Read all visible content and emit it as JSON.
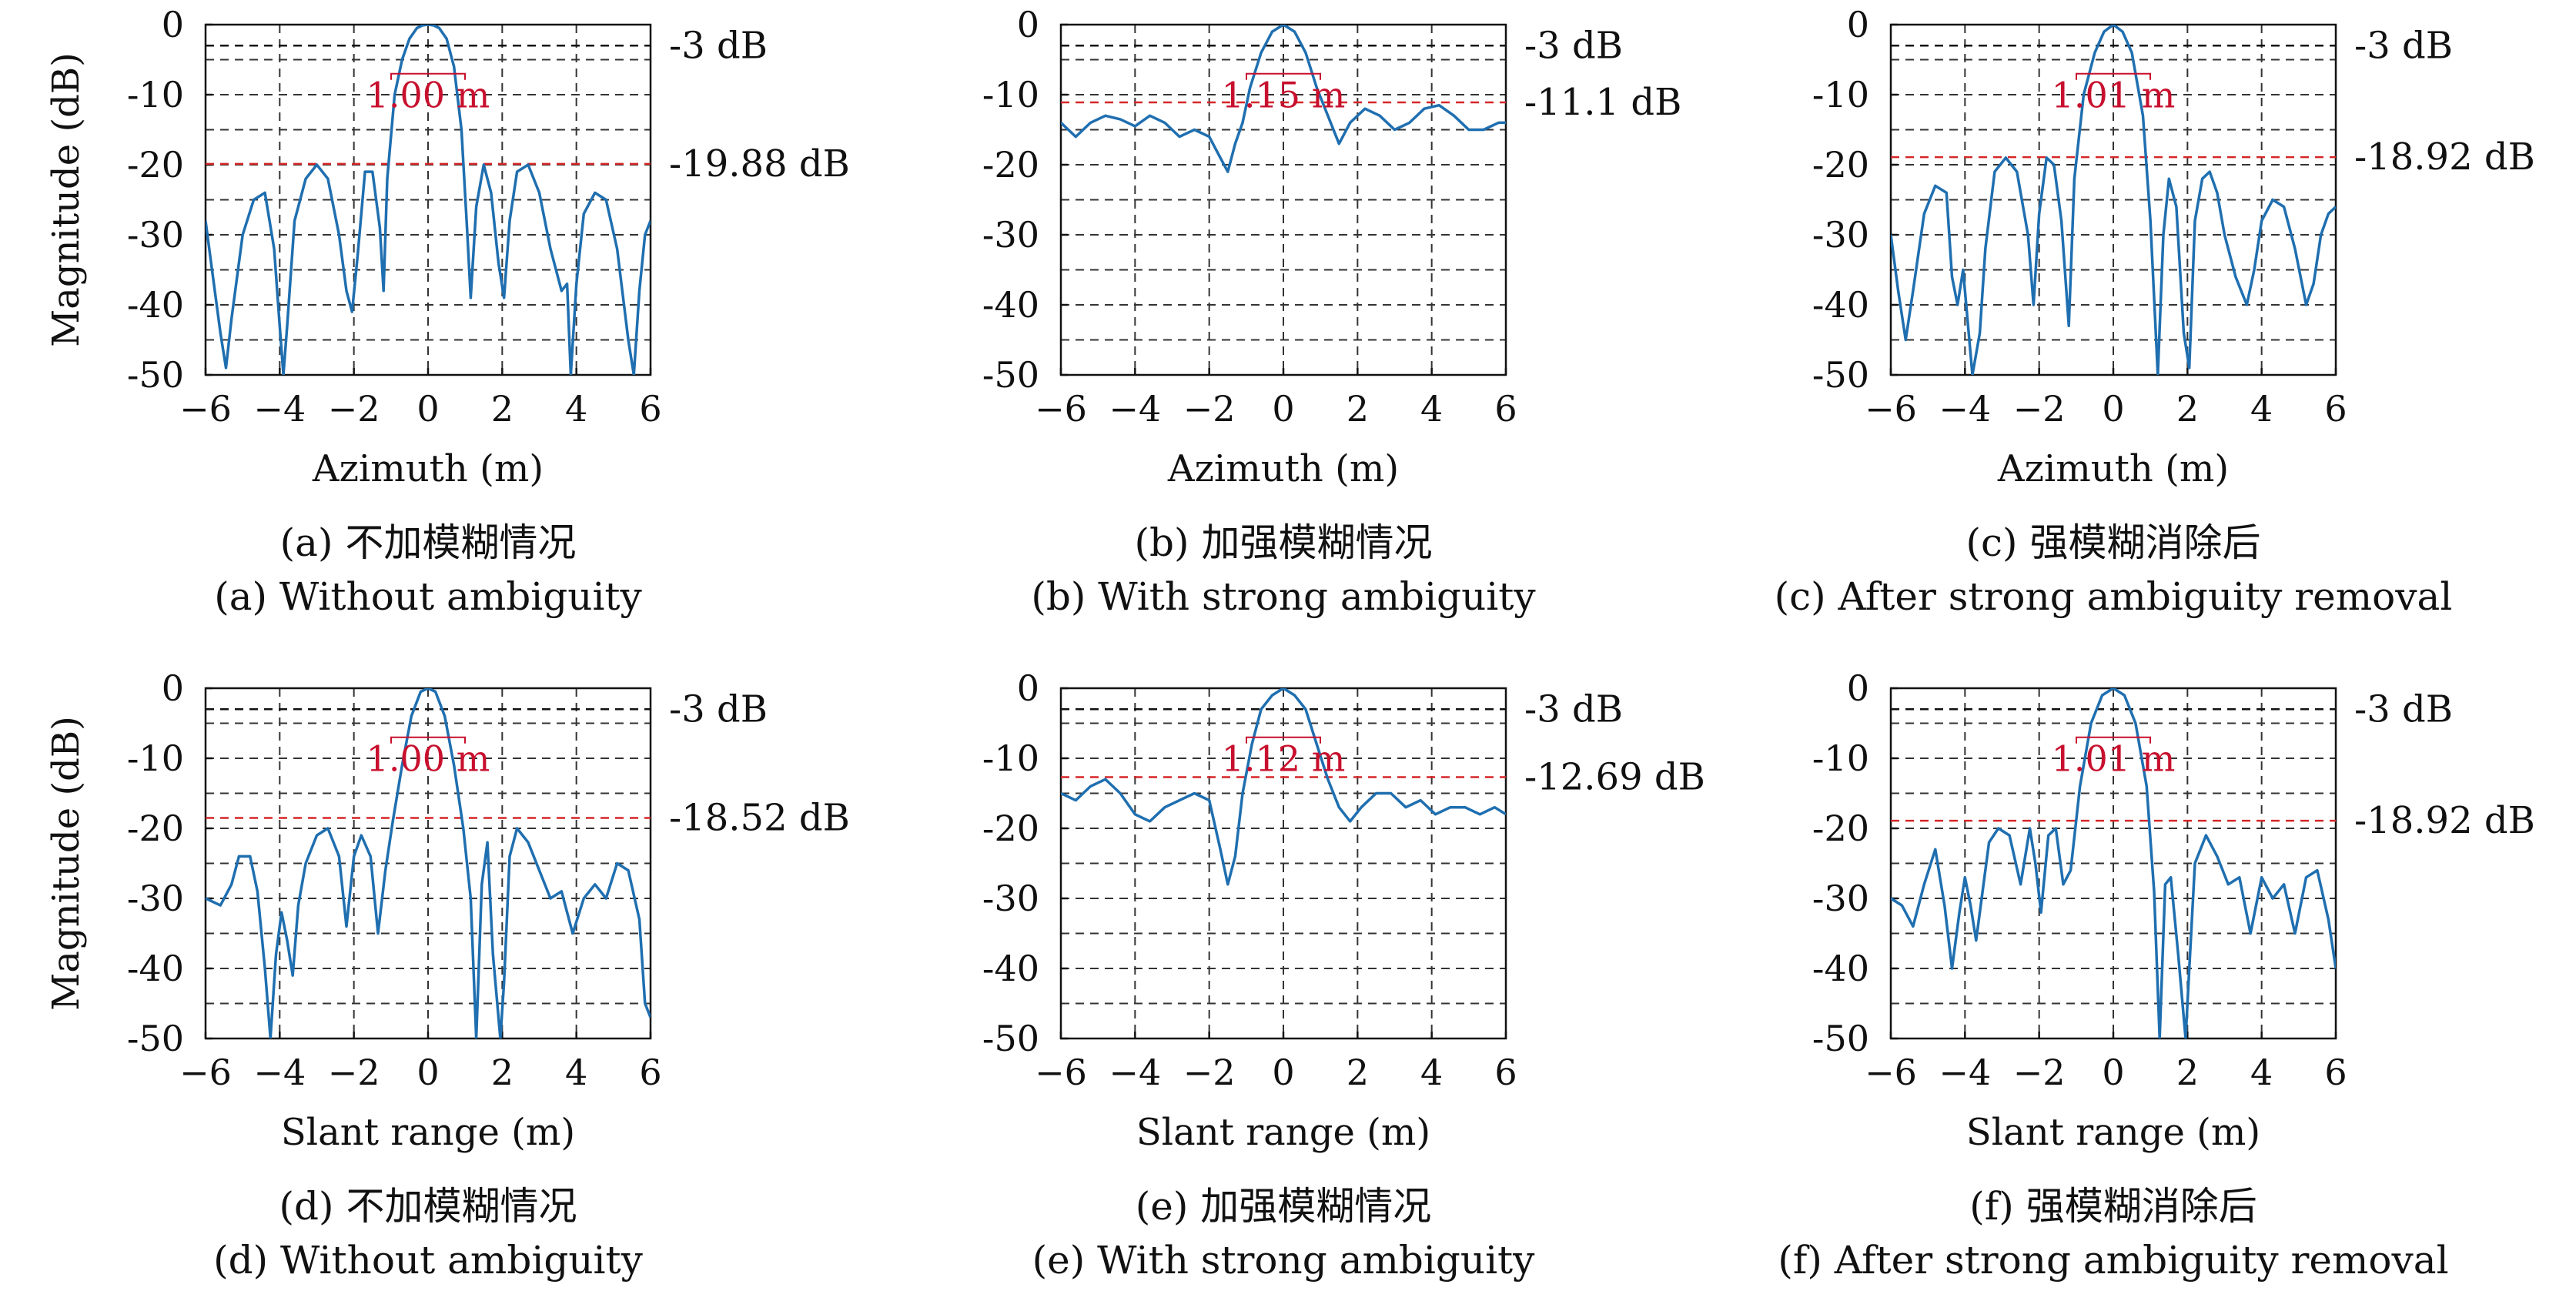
{
  "colors": {
    "line": "#1f6fb0",
    "ref_line": "#d62728",
    "grid": "#333333",
    "annotation": "#c8102e"
  },
  "chart_data": [
    {
      "type": "line",
      "xlabel": "Azimuth (m)",
      "ylabel": "Magnitude (dB)",
      "xlim": [
        -6,
        6
      ],
      "ylim": [
        -50,
        0
      ],
      "xticks": [
        "−6",
        "−4",
        "−2",
        "0",
        "2",
        "4",
        "6"
      ],
      "yticks": [
        "0",
        "-10",
        "-20",
        "-30",
        "-40",
        "-50"
      ],
      "grid": true,
      "ref_label_3db": "-3 dB",
      "ref_value": -19.88,
      "ref_label": "-19.88 dB",
      "width_label": "1.00 m",
      "caption_cn": "(a) 不加模糊情况",
      "caption_en": "(a) Without ambiguity",
      "series": [
        {
          "x": [
            -6,
            -5.8,
            -5.6,
            -5.45,
            -5.3,
            -5.0,
            -4.7,
            -4.4,
            -4.15,
            -4.0,
            -3.9,
            -3.8,
            -3.6,
            -3.3,
            -3.0,
            -2.7,
            -2.4,
            -2.2,
            -2.05,
            -1.9,
            -1.7,
            -1.5,
            -1.3,
            -1.2,
            -1.1,
            -0.9,
            -0.7,
            -0.5,
            -0.3,
            -0.15,
            0,
            0.15,
            0.3,
            0.5,
            0.7,
            0.9,
            1.05,
            1.15,
            1.3,
            1.5,
            1.7,
            1.9,
            2.05,
            2.2,
            2.4,
            2.7,
            3.0,
            3.3,
            3.6,
            3.75,
            3.85,
            4.0,
            4.2,
            4.5,
            4.8,
            5.1,
            5.4,
            5.55,
            5.7,
            5.85,
            6
          ],
          "y": [
            -28,
            -36,
            -44,
            -49,
            -42,
            -30,
            -25,
            -24,
            -32,
            -43,
            -50,
            -43,
            -28,
            -22,
            -20,
            -22,
            -30,
            -38,
            -41,
            -33,
            -21,
            -21,
            -29,
            -38,
            -22,
            -10,
            -5,
            -2,
            -0.5,
            -0.1,
            0,
            -0.1,
            -0.5,
            -2,
            -6,
            -15,
            -29,
            -39,
            -26,
            -20,
            -24,
            -34,
            -39,
            -28,
            -21,
            -20,
            -24,
            -32,
            -38,
            -37,
            -50,
            -37,
            -27,
            -24,
            -25,
            -32,
            -45,
            -50,
            -38,
            -30,
            -28
          ]
        }
      ]
    },
    {
      "type": "line",
      "xlabel": "Azimuth (m)",
      "ylabel": "",
      "xlim": [
        -6,
        6
      ],
      "ylim": [
        -50,
        0
      ],
      "xticks": [
        "−6",
        "−4",
        "−2",
        "0",
        "2",
        "4",
        "6"
      ],
      "yticks": [
        "0",
        "-10",
        "-20",
        "-30",
        "-40",
        "-50"
      ],
      "grid": true,
      "ref_label_3db": "-3 dB",
      "ref_value": -11.1,
      "ref_label": "-11.1 dB",
      "width_label": "1.15 m",
      "caption_cn": "(b) 加强模糊情况",
      "caption_en": "(b) With strong ambiguity",
      "series": [
        {
          "x": [
            -6,
            -5.6,
            -5.2,
            -4.8,
            -4.4,
            -4.0,
            -3.6,
            -3.2,
            -2.8,
            -2.4,
            -2.0,
            -1.7,
            -1.5,
            -1.3,
            -1.1,
            -0.9,
            -0.6,
            -0.3,
            0,
            0.3,
            0.6,
            0.9,
            1.2,
            1.5,
            1.8,
            2.2,
            2.6,
            3.0,
            3.4,
            3.8,
            4.2,
            4.6,
            5.0,
            5.4,
            5.8,
            6
          ],
          "y": [
            -14,
            -16,
            -14,
            -13,
            -13.5,
            -14.5,
            -13,
            -14,
            -16,
            -15,
            -16,
            -19,
            -21,
            -17,
            -14,
            -9,
            -4,
            -1,
            0,
            -1,
            -4,
            -9,
            -13,
            -17,
            -14,
            -12,
            -13,
            -15,
            -14,
            -12,
            -11.5,
            -13,
            -15,
            -15,
            -14,
            -14
          ]
        }
      ]
    },
    {
      "type": "line",
      "xlabel": "Azimuth (m)",
      "ylabel": "",
      "xlim": [
        -6,
        6
      ],
      "ylim": [
        -50,
        0
      ],
      "xticks": [
        "−6",
        "−4",
        "−2",
        "0",
        "2",
        "4",
        "6"
      ],
      "yticks": [
        "0",
        "-10",
        "-20",
        "-30",
        "-40",
        "-50"
      ],
      "grid": true,
      "ref_label_3db": "-3 dB",
      "ref_value": -18.92,
      "ref_label": "-18.92 dB",
      "width_label": "1.01 m",
      "caption_cn": "(c) 强模糊消除后",
      "caption_en": "(c) After strong ambiguity removal",
      "series": [
        {
          "x": [
            -6,
            -5.8,
            -5.6,
            -5.4,
            -5.1,
            -4.8,
            -4.5,
            -4.35,
            -4.2,
            -4.05,
            -3.8,
            -3.6,
            -3.45,
            -3.2,
            -2.9,
            -2.6,
            -2.3,
            -2.15,
            -2.0,
            -1.8,
            -1.6,
            -1.4,
            -1.2,
            -1.05,
            -0.8,
            -0.5,
            -0.25,
            0,
            0.25,
            0.5,
            0.8,
            1.0,
            1.2,
            1.35,
            1.5,
            1.7,
            1.9,
            2.05,
            2.2,
            2.4,
            2.6,
            2.8,
            3.0,
            3.3,
            3.6,
            3.8,
            4.0,
            4.3,
            4.6,
            4.9,
            5.2,
            5.4,
            5.6,
            5.8,
            6
          ],
          "y": [
            -30,
            -38,
            -45,
            -38,
            -27,
            -23,
            -24,
            -36,
            -40,
            -35,
            -50,
            -44,
            -32,
            -21,
            -19,
            -21,
            -30,
            -40,
            -27,
            -19,
            -20,
            -28,
            -43,
            -22,
            -10,
            -4,
            -1,
            0,
            -1,
            -4,
            -13,
            -28,
            -50,
            -30,
            -22,
            -26,
            -44,
            -49,
            -28,
            -22,
            -21,
            -24,
            -30,
            -36,
            -40,
            -35,
            -28,
            -25,
            -26,
            -32,
            -40,
            -37,
            -30,
            -27,
            -26
          ]
        }
      ]
    },
    {
      "type": "line",
      "xlabel": "Slant range (m)",
      "ylabel": "Magnitude (dB)",
      "xlim": [
        -6,
        6
      ],
      "ylim": [
        -50,
        0
      ],
      "xticks": [
        "−6",
        "−4",
        "−2",
        "0",
        "2",
        "4",
        "6"
      ],
      "yticks": [
        "0",
        "-10",
        "-20",
        "-30",
        "-40",
        "-50"
      ],
      "grid": true,
      "ref_label_3db": "-3 dB",
      "ref_value": -18.52,
      "ref_label": "-18.52 dB",
      "width_label": "1.00 m",
      "caption_cn": "(d) 不加模糊情况",
      "caption_en": "(d) Without ambiguity",
      "series": [
        {
          "x": [
            -6,
            -5.6,
            -5.3,
            -5.1,
            -4.8,
            -4.6,
            -4.4,
            -4.25,
            -4.1,
            -3.95,
            -3.8,
            -3.65,
            -3.5,
            -3.3,
            -3.0,
            -2.7,
            -2.4,
            -2.2,
            -2.0,
            -1.8,
            -1.55,
            -1.35,
            -1.15,
            -0.95,
            -0.7,
            -0.45,
            -0.2,
            0,
            0.2,
            0.45,
            0.7,
            0.95,
            1.15,
            1.3,
            1.45,
            1.6,
            1.75,
            1.95,
            2.05,
            2.2,
            2.4,
            2.7,
            3.0,
            3.3,
            3.6,
            3.9,
            4.2,
            4.5,
            4.8,
            5.1,
            5.4,
            5.7,
            5.85,
            6
          ],
          "y": [
            -30,
            -31,
            -28,
            -24,
            -24,
            -29,
            -40,
            -50,
            -38,
            -32,
            -36,
            -41,
            -31,
            -25,
            -21,
            -20,
            -24,
            -34,
            -24,
            -21,
            -24,
            -35,
            -26,
            -19,
            -11,
            -4,
            -0.5,
            0,
            -0.5,
            -4,
            -11,
            -20,
            -30,
            -50,
            -28,
            -22,
            -38,
            -50,
            -42,
            -24,
            -20,
            -22,
            -26,
            -30,
            -29,
            -35,
            -30,
            -28,
            -30,
            -25,
            -26,
            -33,
            -45,
            -47
          ]
        }
      ]
    },
    {
      "type": "line",
      "xlabel": "Slant range (m)",
      "ylabel": "",
      "xlim": [
        -6,
        6
      ],
      "ylim": [
        -50,
        0
      ],
      "xticks": [
        "−6",
        "−4",
        "−2",
        "0",
        "2",
        "4",
        "6"
      ],
      "yticks": [
        "0",
        "-10",
        "-20",
        "-30",
        "-40",
        "-50"
      ],
      "grid": true,
      "ref_label_3db": "-3 dB",
      "ref_value": -12.69,
      "ref_label": "-12.69 dB",
      "width_label": "1.12 m",
      "caption_cn": "(e) 加强模糊情况",
      "caption_en": "(e) With strong ambiguity",
      "series": [
        {
          "x": [
            -6,
            -5.6,
            -5.2,
            -4.8,
            -4.4,
            -4.0,
            -3.6,
            -3.2,
            -2.8,
            -2.4,
            -2.0,
            -1.7,
            -1.5,
            -1.3,
            -1.1,
            -0.85,
            -0.6,
            -0.3,
            0,
            0.3,
            0.6,
            0.9,
            1.2,
            1.5,
            1.8,
            2.1,
            2.5,
            2.9,
            3.3,
            3.7,
            4.1,
            4.5,
            4.9,
            5.3,
            5.7,
            6
          ],
          "y": [
            -15,
            -16,
            -14,
            -13,
            -15,
            -18,
            -19,
            -17,
            -16,
            -15,
            -16,
            -23,
            -28,
            -24,
            -15,
            -8,
            -3,
            -1,
            0,
            -1,
            -3,
            -8,
            -13,
            -17,
            -19,
            -17,
            -15,
            -15,
            -17,
            -16,
            -18,
            -17,
            -17,
            -18,
            -17,
            -18
          ]
        }
      ]
    },
    {
      "type": "line",
      "xlabel": "Slant range (m)",
      "ylabel": "",
      "xlim": [
        -6,
        6
      ],
      "ylim": [
        -50,
        0
      ],
      "xticks": [
        "−6",
        "−4",
        "−2",
        "0",
        "2",
        "4",
        "6"
      ],
      "yticks": [
        "0",
        "-10",
        "-20",
        "-30",
        "-40",
        "-50"
      ],
      "grid": true,
      "ref_label_3db": "-3 dB",
      "ref_value": -18.92,
      "ref_label": "-18.92 dB",
      "width_label": "1.01 m",
      "caption_cn": "(f) 强模糊消除后",
      "caption_en": "(f) After strong ambiguity removal",
      "series": [
        {
          "x": [
            -6,
            -5.7,
            -5.4,
            -5.1,
            -4.8,
            -4.55,
            -4.35,
            -4.15,
            -4.0,
            -3.85,
            -3.7,
            -3.55,
            -3.35,
            -3.1,
            -2.8,
            -2.5,
            -2.25,
            -2.1,
            -1.95,
            -1.75,
            -1.55,
            -1.35,
            -1.15,
            -0.9,
            -0.6,
            -0.3,
            0,
            0.3,
            0.6,
            0.9,
            1.1,
            1.25,
            1.4,
            1.55,
            1.75,
            1.95,
            2.05,
            2.2,
            2.5,
            2.8,
            3.1,
            3.4,
            3.7,
            4.0,
            4.3,
            4.6,
            4.9,
            5.2,
            5.5,
            5.8,
            6
          ],
          "y": [
            -30,
            -31,
            -34,
            -28,
            -23,
            -31,
            -40,
            -32,
            -27,
            -31,
            -36,
            -30,
            -22,
            -20,
            -21,
            -28,
            -20,
            -25,
            -32,
            -21,
            -20,
            -28,
            -26,
            -14,
            -5,
            -1,
            0,
            -1,
            -5,
            -14,
            -29,
            -50,
            -28,
            -27,
            -38,
            -50,
            -40,
            -25,
            -21,
            -24,
            -28,
            -27,
            -35,
            -27,
            -30,
            -28,
            -35,
            -27,
            -26,
            -33,
            -40
          ]
        }
      ]
    }
  ]
}
